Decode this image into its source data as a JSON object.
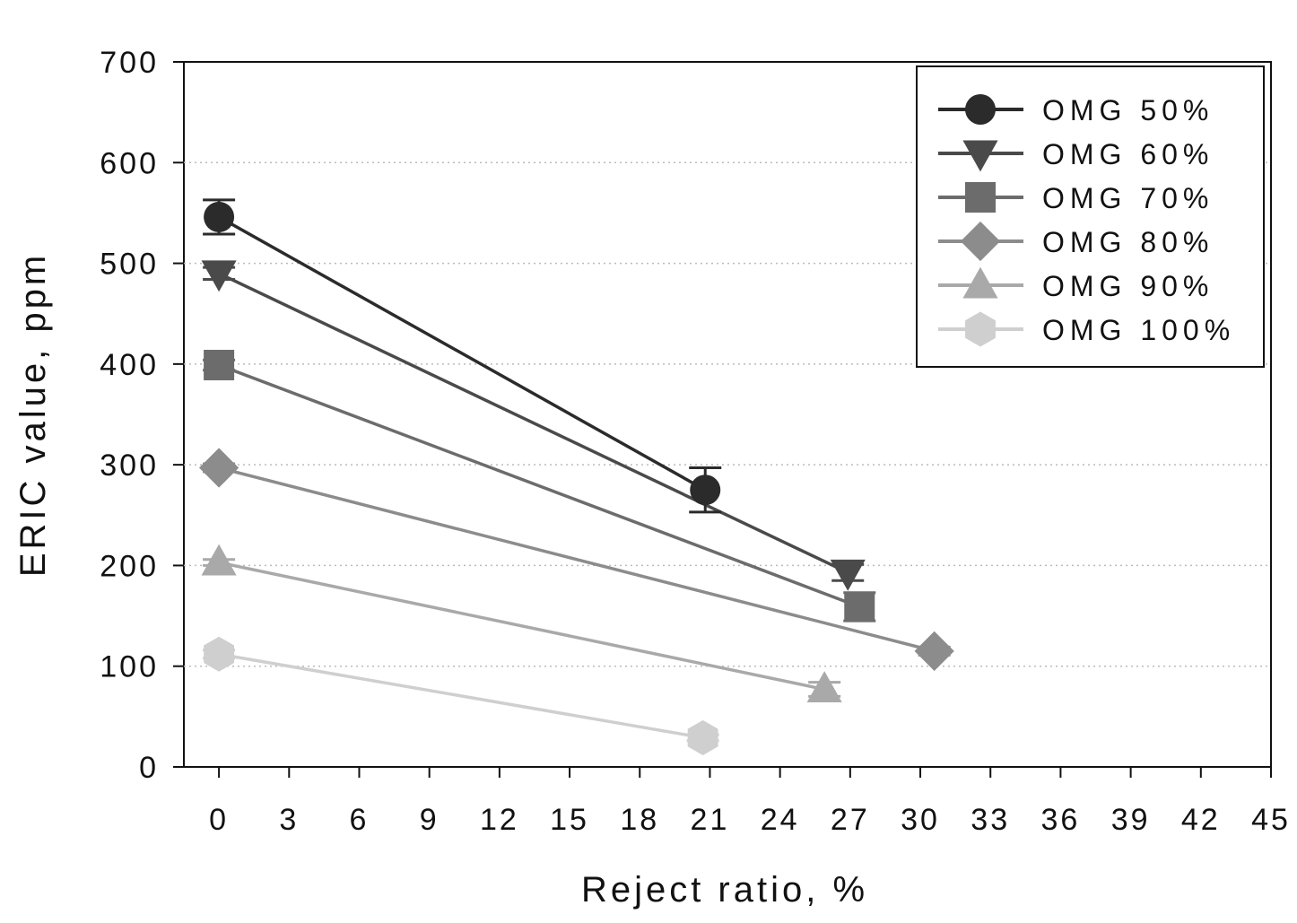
{
  "chart_data": {
    "type": "line",
    "xlabel": "Reject ratio, %",
    "ylabel": "ERIC value, ppm",
    "xlim": [
      -1.5,
      45
    ],
    "ylim": [
      0,
      700
    ],
    "xticks": [
      "0",
      "3",
      "6",
      "9",
      "12",
      "15",
      "18",
      "21",
      "24",
      "27",
      "30",
      "33",
      "36",
      "39",
      "42",
      "45"
    ],
    "yticks": [
      "0",
      "100",
      "200",
      "300",
      "400",
      "500",
      "600",
      "700"
    ],
    "grid": "horizontal dotted",
    "legend_position": "top-right",
    "series": [
      {
        "name": "OMG 50%",
        "marker": "circle",
        "color": "#2b2b2b",
        "x": [
          0,
          20.8
        ],
        "y": [
          546,
          275
        ],
        "err": [
          17,
          22
        ]
      },
      {
        "name": "OMG 60%",
        "marker": "triangle-down",
        "color": "#4a4a4a",
        "x": [
          0,
          26.9
        ],
        "y": [
          490,
          193
        ],
        "err": [
          6,
          8
        ]
      },
      {
        "name": "OMG 70%",
        "marker": "square",
        "color": "#6c6c6c",
        "x": [
          0,
          27.4
        ],
        "y": [
          399,
          159
        ],
        "err": [
          5,
          14
        ]
      },
      {
        "name": "OMG 80%",
        "marker": "diamond",
        "color": "#8c8c8c",
        "x": [
          0,
          30.6
        ],
        "y": [
          297,
          115
        ],
        "err": [
          4,
          4
        ]
      },
      {
        "name": "OMG 90%",
        "marker": "triangle-up",
        "color": "#a9a9a9",
        "x": [
          0,
          25.9
        ],
        "y": [
          203,
          77
        ],
        "err": [
          3,
          7
        ]
      },
      {
        "name": "OMG 100%",
        "marker": "hexagon",
        "color": "#cfcfcf",
        "x": [
          0,
          20.7
        ],
        "y": [
          112,
          29
        ],
        "err": [
          4,
          3
        ]
      }
    ]
  }
}
